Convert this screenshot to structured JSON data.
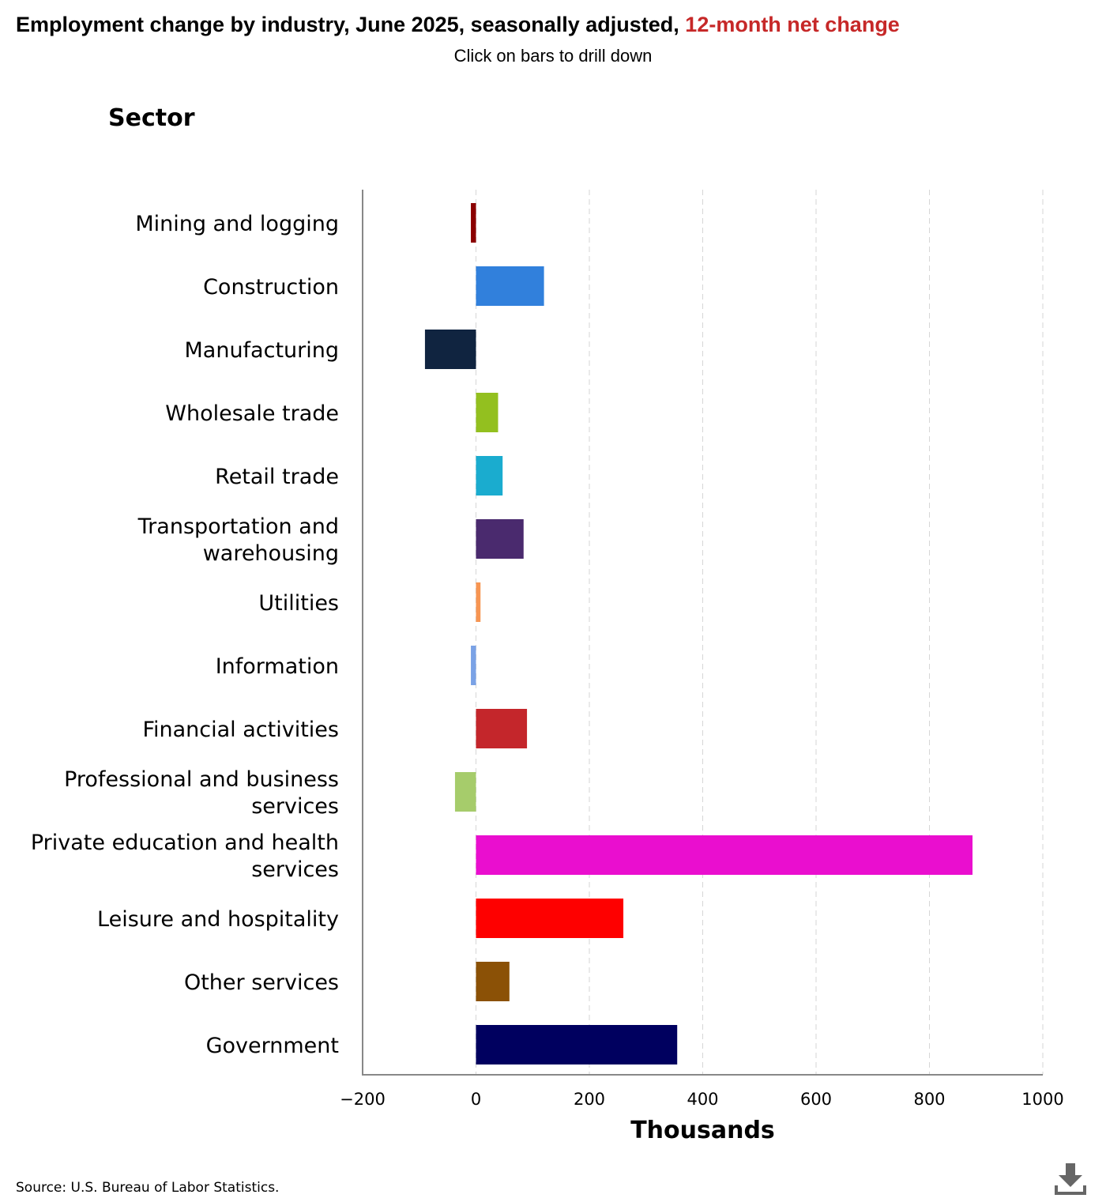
{
  "header": {
    "title_main": "Employment change by industry, June 2025, seasonally adjusted,",
    "title_accent": "12-month net change",
    "subtitle": "Click on bars to drill down"
  },
  "footer": {
    "source": "Source: U.S. Bureau of Labor Statistics."
  },
  "chart_data": {
    "type": "bar",
    "orientation": "horizontal",
    "title": "Employment change by industry, June 2025, seasonally adjusted, 12-month net change",
    "ylabel": "Sector",
    "xlabel": "Thousands",
    "xlim": [
      -200,
      1000
    ],
    "xticks": [
      -200,
      0,
      200,
      400,
      600,
      800,
      1000
    ],
    "xtick_labels": [
      "−200",
      "0",
      "200",
      "400",
      "600",
      "800",
      "1000"
    ],
    "grid": true,
    "legend": "none",
    "categories": [
      [
        "Mining and logging"
      ],
      [
        "Construction"
      ],
      [
        "Manufacturing"
      ],
      [
        "Wholesale trade"
      ],
      [
        "Retail trade"
      ],
      [
        "Transportation and",
        "warehousing"
      ],
      [
        "Utilities"
      ],
      [
        "Information"
      ],
      [
        "Financial activities"
      ],
      [
        "Professional and business",
        "services"
      ],
      [
        "Private education and health",
        "services"
      ],
      [
        "Leisure and hospitality"
      ],
      [
        "Other services"
      ],
      [
        "Government"
      ]
    ],
    "values": [
      -9,
      120,
      -90,
      39,
      47,
      84,
      8,
      -9,
      90,
      -37,
      876,
      260,
      59,
      355
    ],
    "colors": [
      "#8b0000",
      "#3180dc",
      "#102440",
      "#93c01f",
      "#1aaccf",
      "#4a2a6e",
      "#f79552",
      "#7aa2e6",
      "#c4262b",
      "#a6cc6b",
      "#ea0ecf",
      "#fe0000",
      "#8b5106",
      "#00005f"
    ]
  }
}
